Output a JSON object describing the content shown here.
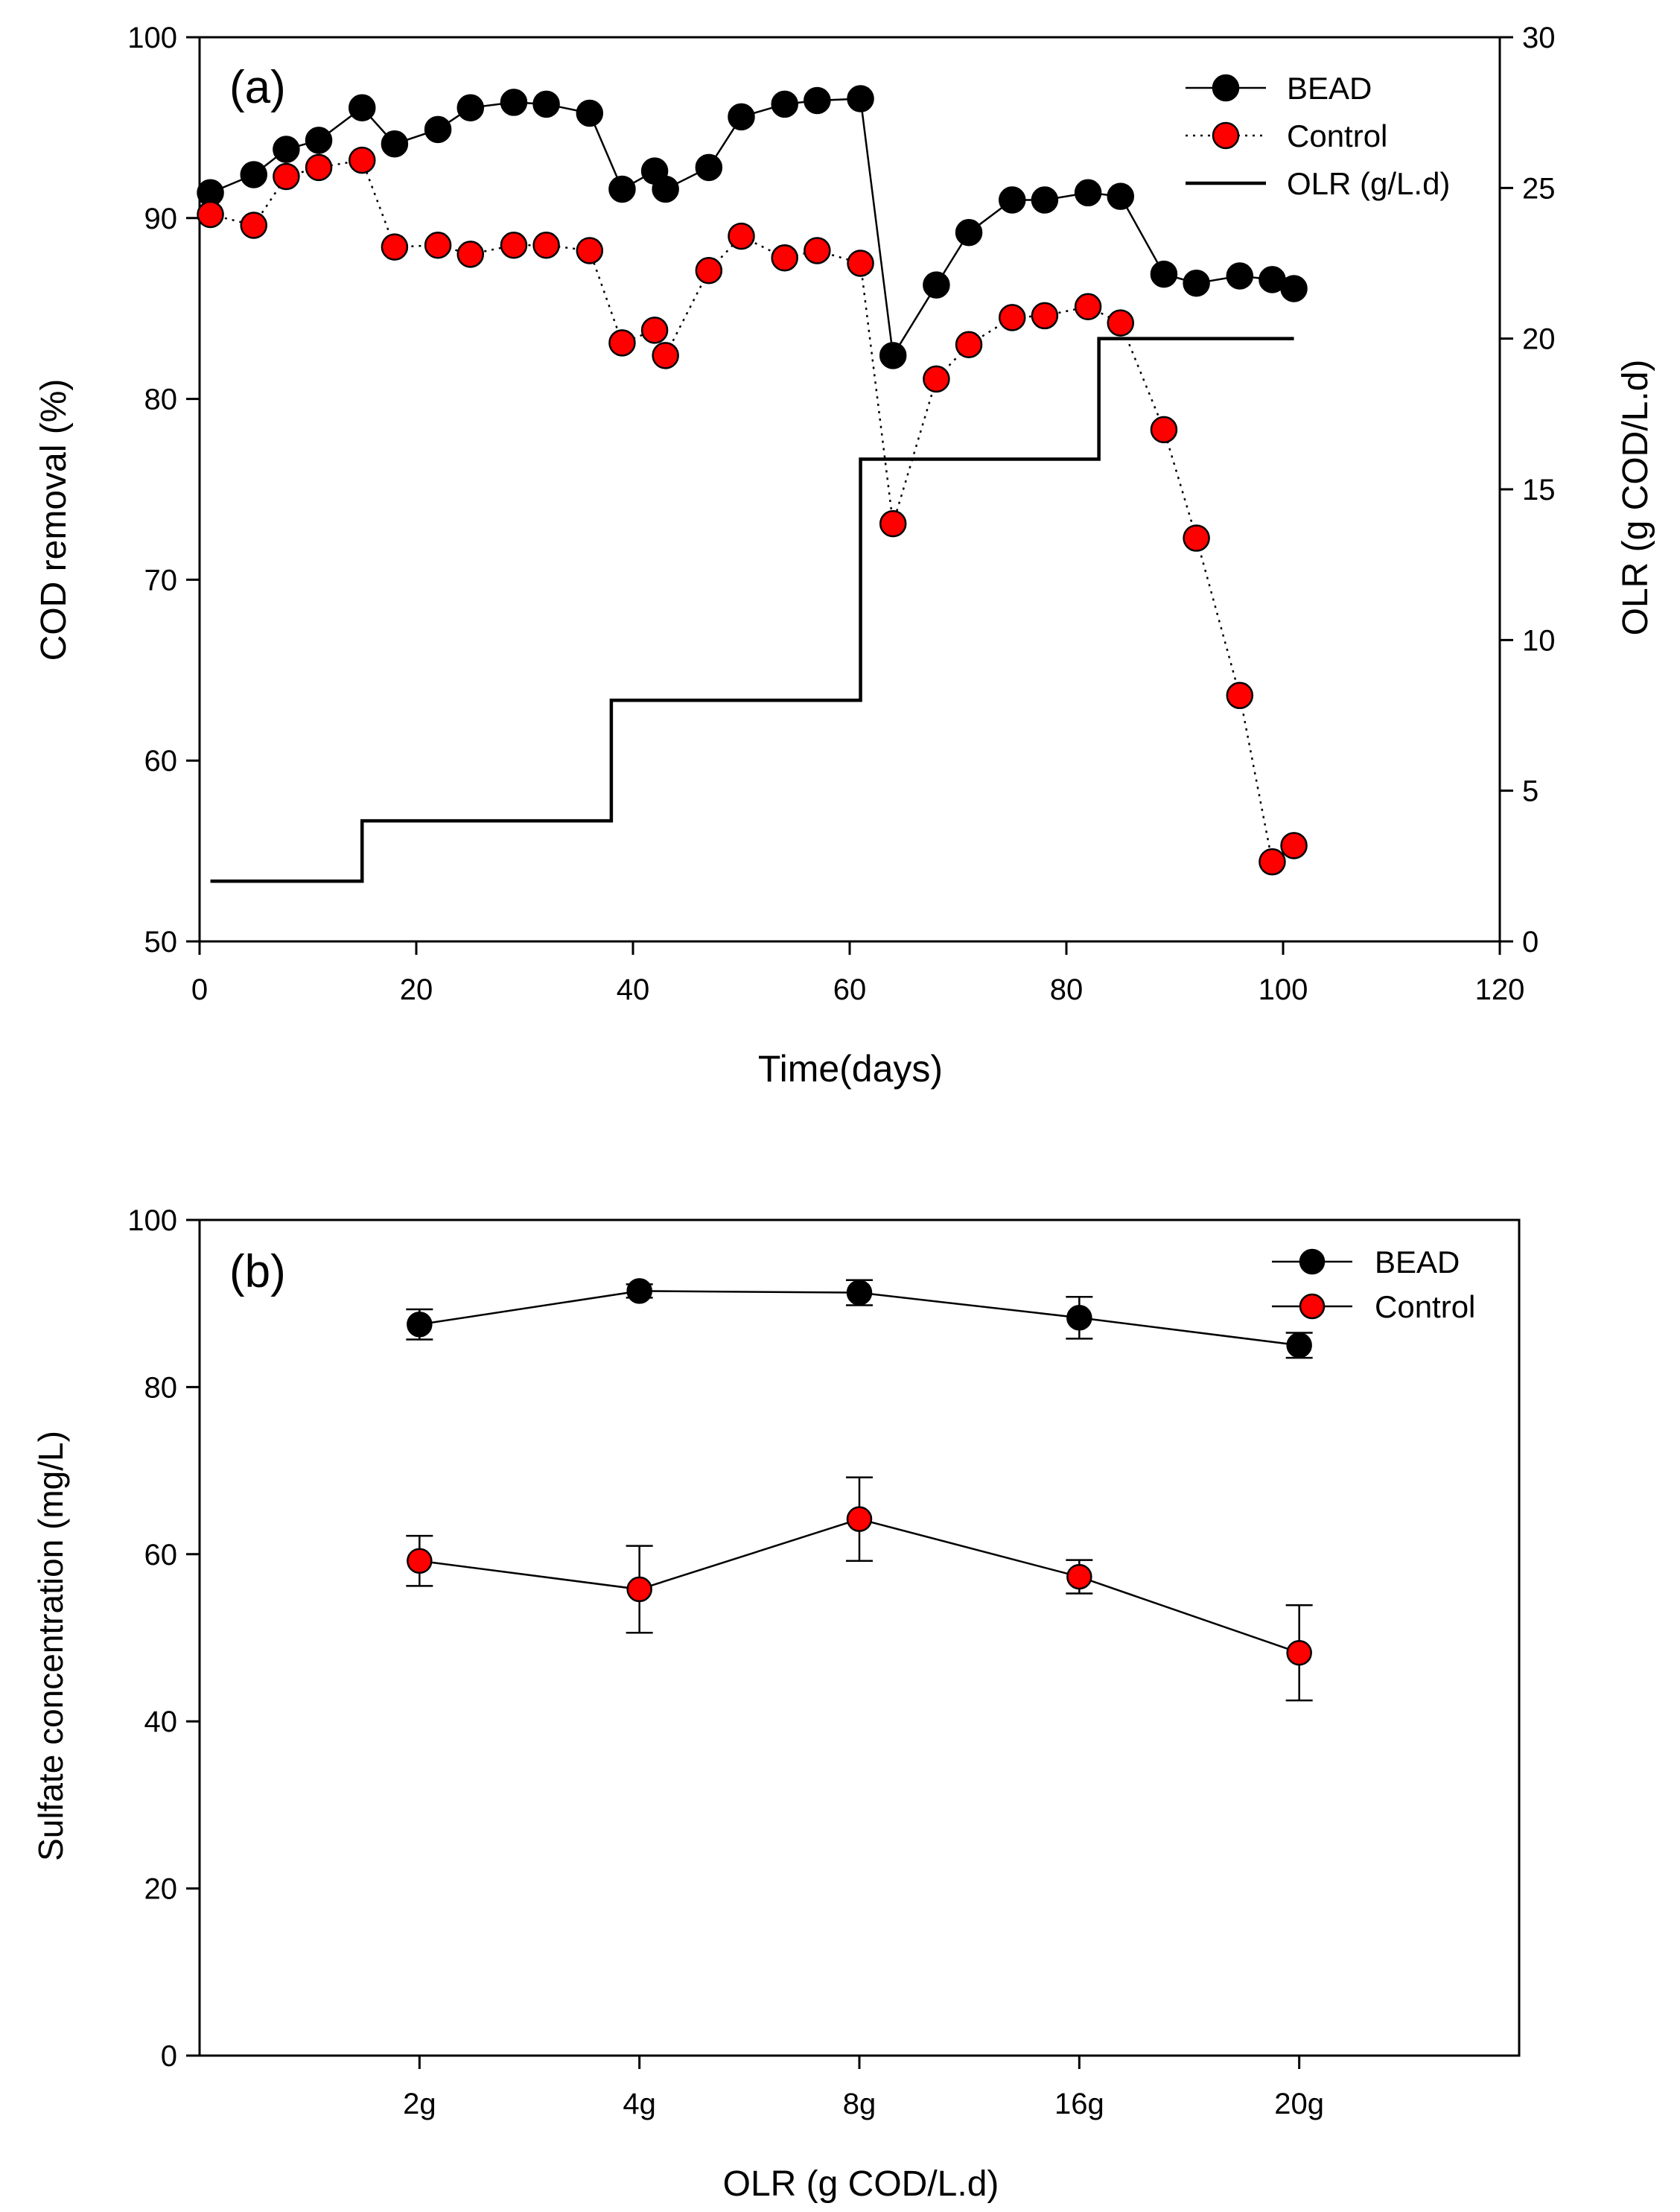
{
  "chart_data": [
    {
      "type": "line",
      "panel_label": "(a)",
      "xlabel": "Time(days)",
      "ylabel": "COD removal (%)",
      "y2label": "OLR (g COD/L.d)",
      "xlim": [
        0,
        120
      ],
      "ylim": [
        50,
        100
      ],
      "y2lim": [
        0,
        30
      ],
      "xticks": [
        0,
        20,
        40,
        60,
        80,
        100,
        120
      ],
      "yticks": [
        50,
        60,
        70,
        80,
        90,
        100
      ],
      "y2ticks": [
        0,
        5,
        10,
        15,
        20,
        25,
        30
      ],
      "grid": false,
      "legend_position": "top-right",
      "series": [
        {
          "name": "BEAD",
          "axis": "left",
          "style": "solid",
          "marker_color": "#000000",
          "x": [
            1,
            5,
            8,
            11,
            15,
            18,
            22,
            25,
            29,
            32,
            36,
            39,
            42,
            43,
            47,
            50,
            54,
            57,
            61,
            64,
            68,
            71,
            75,
            78,
            82,
            85,
            89,
            92,
            96,
            99,
            101
          ],
          "y": [
            91.4,
            92.4,
            93.8,
            94.3,
            96.1,
            94.1,
            94.9,
            96.1,
            96.4,
            96.3,
            95.8,
            91.6,
            92.6,
            91.6,
            92.8,
            95.6,
            96.3,
            96.5,
            96.6,
            82.4,
            86.3,
            89.2,
            91.0,
            91.0,
            91.4,
            91.2,
            86.9,
            86.4,
            86.8,
            86.6,
            86.1
          ]
        },
        {
          "name": "Control",
          "axis": "left",
          "style": "dotted",
          "marker_color": "#ff0000",
          "x": [
            1,
            5,
            8,
            11,
            15,
            18,
            22,
            25,
            29,
            32,
            36,
            39,
            42,
            43,
            47,
            50,
            54,
            57,
            61,
            64,
            68,
            71,
            75,
            78,
            82,
            85,
            89,
            92,
            96,
            99,
            101
          ],
          "y": [
            90.2,
            89.6,
            92.3,
            92.8,
            93.2,
            88.4,
            88.5,
            88.0,
            88.5,
            88.5,
            88.2,
            83.1,
            83.8,
            82.4,
            87.1,
            89.0,
            87.8,
            88.2,
            87.5,
            73.1,
            81.1,
            83.0,
            84.5,
            84.6,
            85.1,
            84.2,
            78.3,
            72.3,
            63.6,
            54.4,
            55.3
          ]
        },
        {
          "name": "OLR (g/L.d)",
          "axis": "right",
          "style": "step",
          "x": [
            1,
            15,
            15,
            38,
            38,
            61,
            61,
            83,
            83,
            101
          ],
          "y": [
            2,
            2,
            4,
            4,
            8,
            8,
            16,
            16,
            20,
            20
          ]
        }
      ]
    },
    {
      "type": "line",
      "panel_label": "(b)",
      "xlabel": "OLR (g COD/L.d)",
      "ylabel": "Sulfate  concentration (mg/L)",
      "categories": [
        "2g",
        "4g",
        "8g",
        "16g",
        "20g"
      ],
      "ylim": [
        0,
        100
      ],
      "yticks": [
        0,
        20,
        40,
        60,
        80,
        100
      ],
      "grid": false,
      "legend_position": "top-right",
      "series": [
        {
          "name": "BEAD",
          "marker_color": "#000000",
          "values": [
            87.5,
            91.5,
            91.3,
            88.3,
            85.0
          ],
          "errors": [
            1.8,
            0.8,
            1.5,
            2.5,
            1.5
          ]
        },
        {
          "name": "Control",
          "marker_color": "#ff0000",
          "values": [
            59.2,
            55.8,
            64.2,
            57.3,
            48.2
          ],
          "errors": [
            3.0,
            5.2,
            5.0,
            2.0,
            5.7
          ]
        }
      ]
    }
  ]
}
